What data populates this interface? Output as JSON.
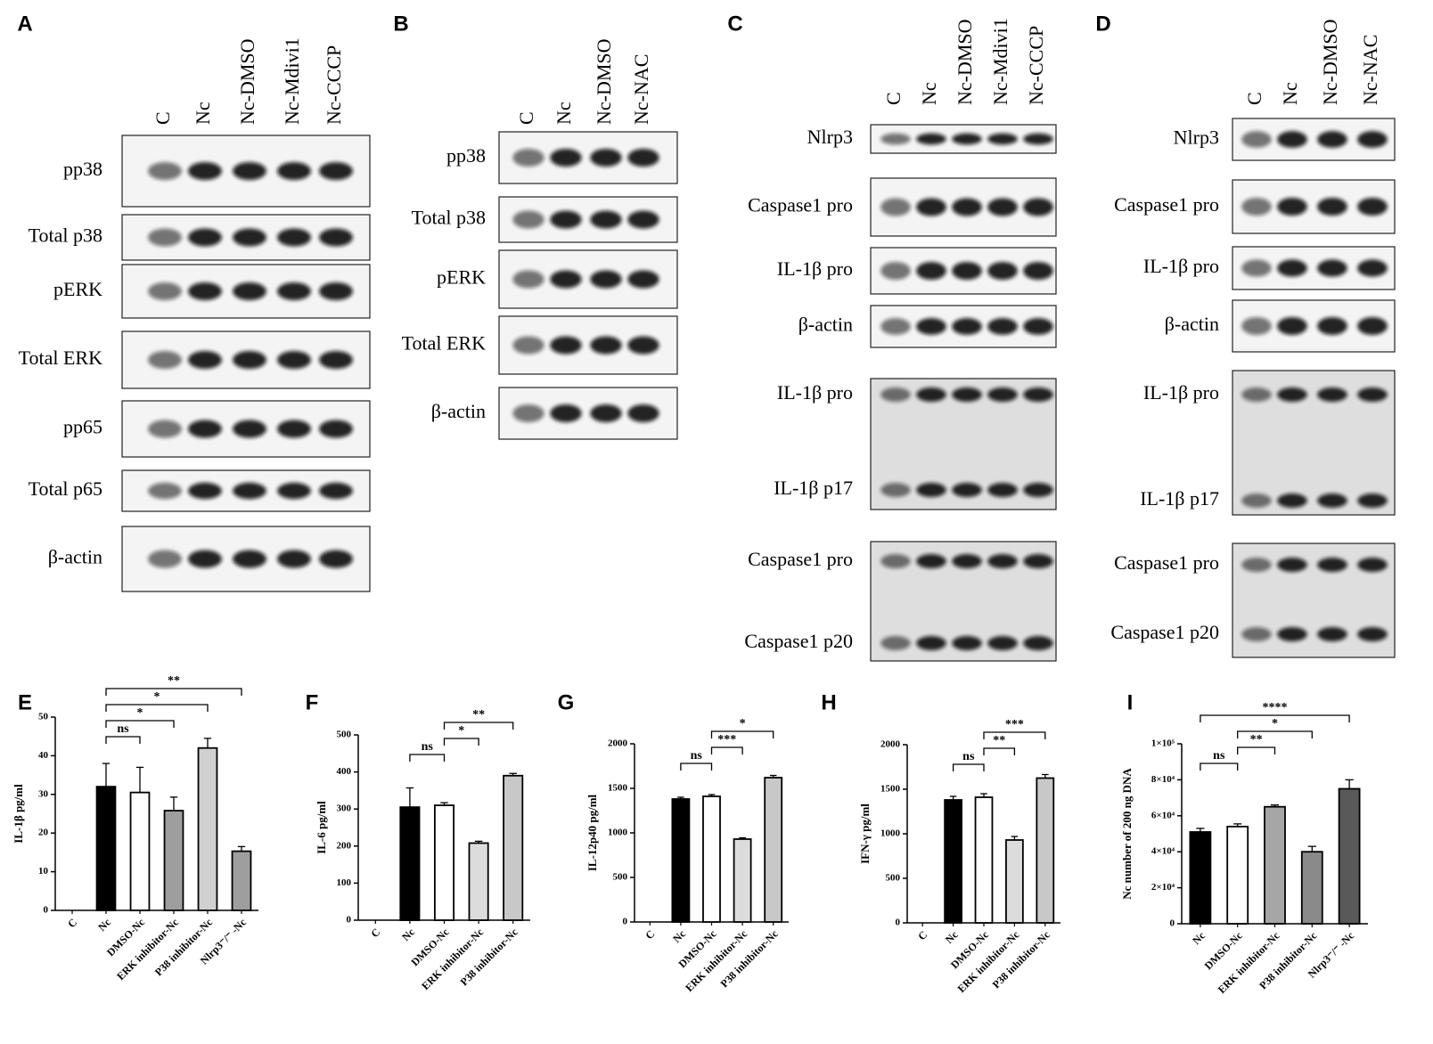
{
  "blots": [
    {
      "label": "A",
      "lanes": [
        "C",
        "Nc",
        "Nc-DMSO",
        "Nc-Mdivi1",
        "Nc-CCCP"
      ],
      "rows": [
        [
          "pp38"
        ],
        [
          "Total p38"
        ],
        [
          "pERK"
        ],
        [
          "Total ERK"
        ],
        [
          "pp65"
        ],
        [
          "Total p65"
        ],
        [
          "β-actin"
        ]
      ]
    },
    {
      "label": "B",
      "lanes": [
        "C",
        "Nc",
        "Nc-DMSO",
        "Nc-NAC"
      ],
      "rows": [
        [
          "pp38"
        ],
        [
          "Total p38"
        ],
        [
          "pERK"
        ],
        [
          "Total ERK"
        ],
        [
          "β-actin"
        ]
      ]
    },
    {
      "label": "C",
      "lanes": [
        "C",
        "Nc",
        "Nc-DMSO",
        "Nc-Mdivi1",
        "Nc-CCCP"
      ],
      "rows": [
        [
          "Nlrp3"
        ],
        [
          "Caspase1 pro"
        ],
        [
          "IL-1β pro"
        ],
        [
          "β-actin"
        ],
        [
          "IL-1β pro",
          "IL-1β p17"
        ],
        [
          "Caspase1 pro",
          "Caspase1 p20"
        ]
      ]
    },
    {
      "label": "D",
      "lanes": [
        "C",
        "Nc",
        "Nc-DMSO",
        "Nc-NAC"
      ],
      "rows": [
        [
          "Nlrp3"
        ],
        [
          "Caspase1 pro"
        ],
        [
          "IL-1β pro"
        ],
        [
          "β-actin"
        ],
        [
          "IL-1β pro",
          "IL-1β p17"
        ],
        [
          "Caspase1 pro",
          "Caspase1 p20"
        ]
      ]
    }
  ],
  "chart_data": [
    {
      "type": "bar",
      "label": "E",
      "ylabel": "IL-1β pg/ml",
      "categories": [
        "C",
        "Nc",
        "DMSO-Nc",
        "ERK inhibitor-Nc",
        "P38 inhibitor-Nc",
        "Nlrp3⁻/⁻ -Nc"
      ],
      "values": [
        0,
        32,
        30.5,
        25.8,
        42,
        15.3
      ],
      "errors": [
        0,
        6,
        6.5,
        3.5,
        2.5,
        1.2
      ],
      "colors": [
        "#000000",
        "#000000",
        "#ffffff",
        "#9e9e9e",
        "#d0d0d0",
        "#9e9e9e"
      ],
      "ylim": [
        0,
        50
      ],
      "yticks": [
        0,
        10,
        20,
        30,
        40,
        50
      ],
      "annotations": [
        {
          "text": "ns",
          "between": [
            "Nc",
            "DMSO-Nc"
          ]
        },
        {
          "text": "*",
          "between": [
            "Nc",
            "ERK inhibitor-Nc"
          ]
        },
        {
          "text": "*",
          "between": [
            "Nc",
            "P38 inhibitor-Nc"
          ]
        },
        {
          "text": "**",
          "between": [
            "Nc",
            "Nlrp3⁻/⁻ -Nc"
          ]
        }
      ]
    },
    {
      "type": "bar",
      "label": "F",
      "ylabel": "IL-6 pg/ml",
      "categories": [
        "C",
        "Nc",
        "DMSO-Nc",
        "ERK inhibitor-Nc",
        "P38 inhibitor-Nc"
      ],
      "values": [
        0,
        305,
        310,
        208,
        390
      ],
      "errors": [
        0,
        52,
        7,
        5,
        6
      ],
      "colors": [
        "#000000",
        "#000000",
        "#ffffff",
        "#dcdcdc",
        "#c8c8c8"
      ],
      "ylim": [
        0,
        500
      ],
      "yticks": [
        0,
        100,
        200,
        300,
        400,
        500
      ],
      "annotations": [
        {
          "text": "ns",
          "between": [
            "Nc",
            "DMSO-Nc"
          ]
        },
        {
          "text": "*",
          "between": [
            "DMSO-Nc",
            "ERK inhibitor-Nc"
          ]
        },
        {
          "text": "**",
          "between": [
            "DMSO-Nc",
            "P38 inhibitor-Nc"
          ]
        }
      ]
    },
    {
      "type": "bar",
      "label": "G",
      "ylabel": "IL-12p40 pg/ml",
      "categories": [
        "C",
        "Nc",
        "DMSO-Nc",
        "ERK inhibitor-Nc",
        "P38 inhibitor-Nc"
      ],
      "values": [
        0,
        1380,
        1410,
        930,
        1620
      ],
      "errors": [
        0,
        20,
        20,
        15,
        25
      ],
      "colors": [
        "#000000",
        "#000000",
        "#ffffff",
        "#dcdcdc",
        "#c8c8c8"
      ],
      "ylim": [
        0,
        2000
      ],
      "yticks": [
        0,
        500,
        1000,
        1500,
        2000
      ],
      "annotations": [
        {
          "text": "ns",
          "between": [
            "Nc",
            "DMSO-Nc"
          ]
        },
        {
          "text": "***",
          "between": [
            "DMSO-Nc",
            "ERK inhibitor-Nc"
          ]
        },
        {
          "text": "*",
          "between": [
            "DMSO-Nc",
            "P38 inhibitor-Nc"
          ]
        }
      ]
    },
    {
      "type": "bar",
      "label": "H",
      "ylabel": "IFN-γ pg/ml",
      "categories": [
        "C",
        "Nc",
        "DMSO-Nc",
        "ERK inhibitor-Nc",
        "P38 inhibitor-Nc"
      ],
      "values": [
        0,
        1380,
        1410,
        930,
        1625
      ],
      "errors": [
        0,
        40,
        40,
        40,
        40
      ],
      "colors": [
        "#000000",
        "#000000",
        "#ffffff",
        "#dcdcdc",
        "#c8c8c8"
      ],
      "ylim": [
        0,
        2000
      ],
      "yticks": [
        0,
        500,
        1000,
        1500,
        2000
      ],
      "annotations": [
        {
          "text": "ns",
          "between": [
            "Nc",
            "DMSO-Nc"
          ]
        },
        {
          "text": "**",
          "between": [
            "DMSO-Nc",
            "ERK inhibitor-Nc"
          ]
        },
        {
          "text": "***",
          "between": [
            "DMSO-Nc",
            "P38 inhibitor-Nc"
          ]
        }
      ]
    },
    {
      "type": "bar",
      "label": "I",
      "ylabel": "Nc number of 200 ng DNA",
      "categories": [
        "Nc",
        "DMSO-Nc",
        "ERK inhibitor-Nc",
        "P38 inhibitor-Nc",
        "Nlrp3⁻/⁻ -Nc"
      ],
      "values": [
        51000,
        54000,
        65000,
        40000,
        75000
      ],
      "errors": [
        2000,
        1500,
        1000,
        3000,
        5000
      ],
      "colors": [
        "#000000",
        "#ffffff",
        "#a6a6a6",
        "#8a8a8a",
        "#595959"
      ],
      "ylim": [
        0,
        100000
      ],
      "yticks": [
        0,
        {
          "value": 20000,
          "label": "2×10⁴"
        },
        {
          "value": 40000,
          "label": "4×10⁴"
        },
        {
          "value": 60000,
          "label": "6×10⁴"
        },
        {
          "value": 80000,
          "label": "8×10⁴"
        },
        {
          "value": 100000,
          "label": "1×10⁵"
        }
      ],
      "annotations": [
        {
          "text": "ns",
          "between": [
            "Nc",
            "DMSO-Nc"
          ]
        },
        {
          "text": "**",
          "between": [
            "DMSO-Nc",
            "ERK inhibitor-Nc"
          ]
        },
        {
          "text": "*",
          "between": [
            "DMSO-Nc",
            "P38 inhibitor-Nc"
          ]
        },
        {
          "text": "****",
          "between": [
            "Nc",
            "Nlrp3⁻/⁻ -Nc"
          ]
        }
      ]
    }
  ]
}
